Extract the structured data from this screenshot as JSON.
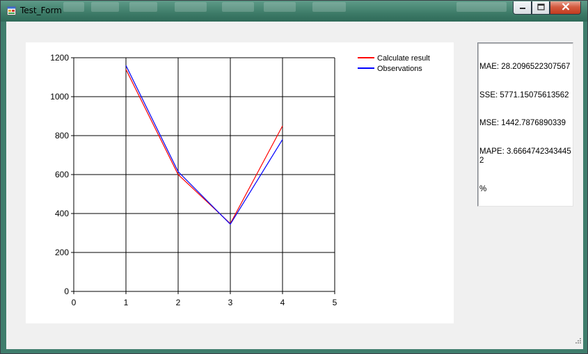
{
  "window": {
    "title": "Test_Form",
    "icon": "form-app-icon",
    "controls": {
      "minimize": "minimize-icon",
      "maximize": "maximize-icon",
      "close": "close-icon"
    }
  },
  "textbox": {
    "lines": [
      "MAE: 28.2096522307567",
      "SSE: 5771.15075613562",
      "MSE: 1442.7876890339",
      "MAPE: 3.66647423434452",
      "%"
    ]
  },
  "chart_data": {
    "type": "line",
    "title": "",
    "xlabel": "",
    "ylabel": "",
    "xlim": [
      0,
      5
    ],
    "ylim": [
      0,
      1200
    ],
    "x_ticks": [
      0,
      1,
      2,
      3,
      4,
      5
    ],
    "y_ticks": [
      0,
      200,
      400,
      600,
      800,
      1000,
      1200
    ],
    "grid": true,
    "legend_position": "top-right",
    "series": [
      {
        "name": "Calculate result",
        "color": "#ff0000",
        "x": [
          1,
          2,
          3,
          4
        ],
        "y": [
          1140,
          600,
          348,
          850
        ]
      },
      {
        "name": "Observations",
        "color": "#0000ff",
        "x": [
          1,
          2,
          3,
          4
        ],
        "y": [
          1160,
          615,
          345,
          780
        ]
      }
    ]
  },
  "colors": {
    "client_bg": "#f0f0f0",
    "chart_bg": "#ffffff",
    "grid": "#000000"
  }
}
